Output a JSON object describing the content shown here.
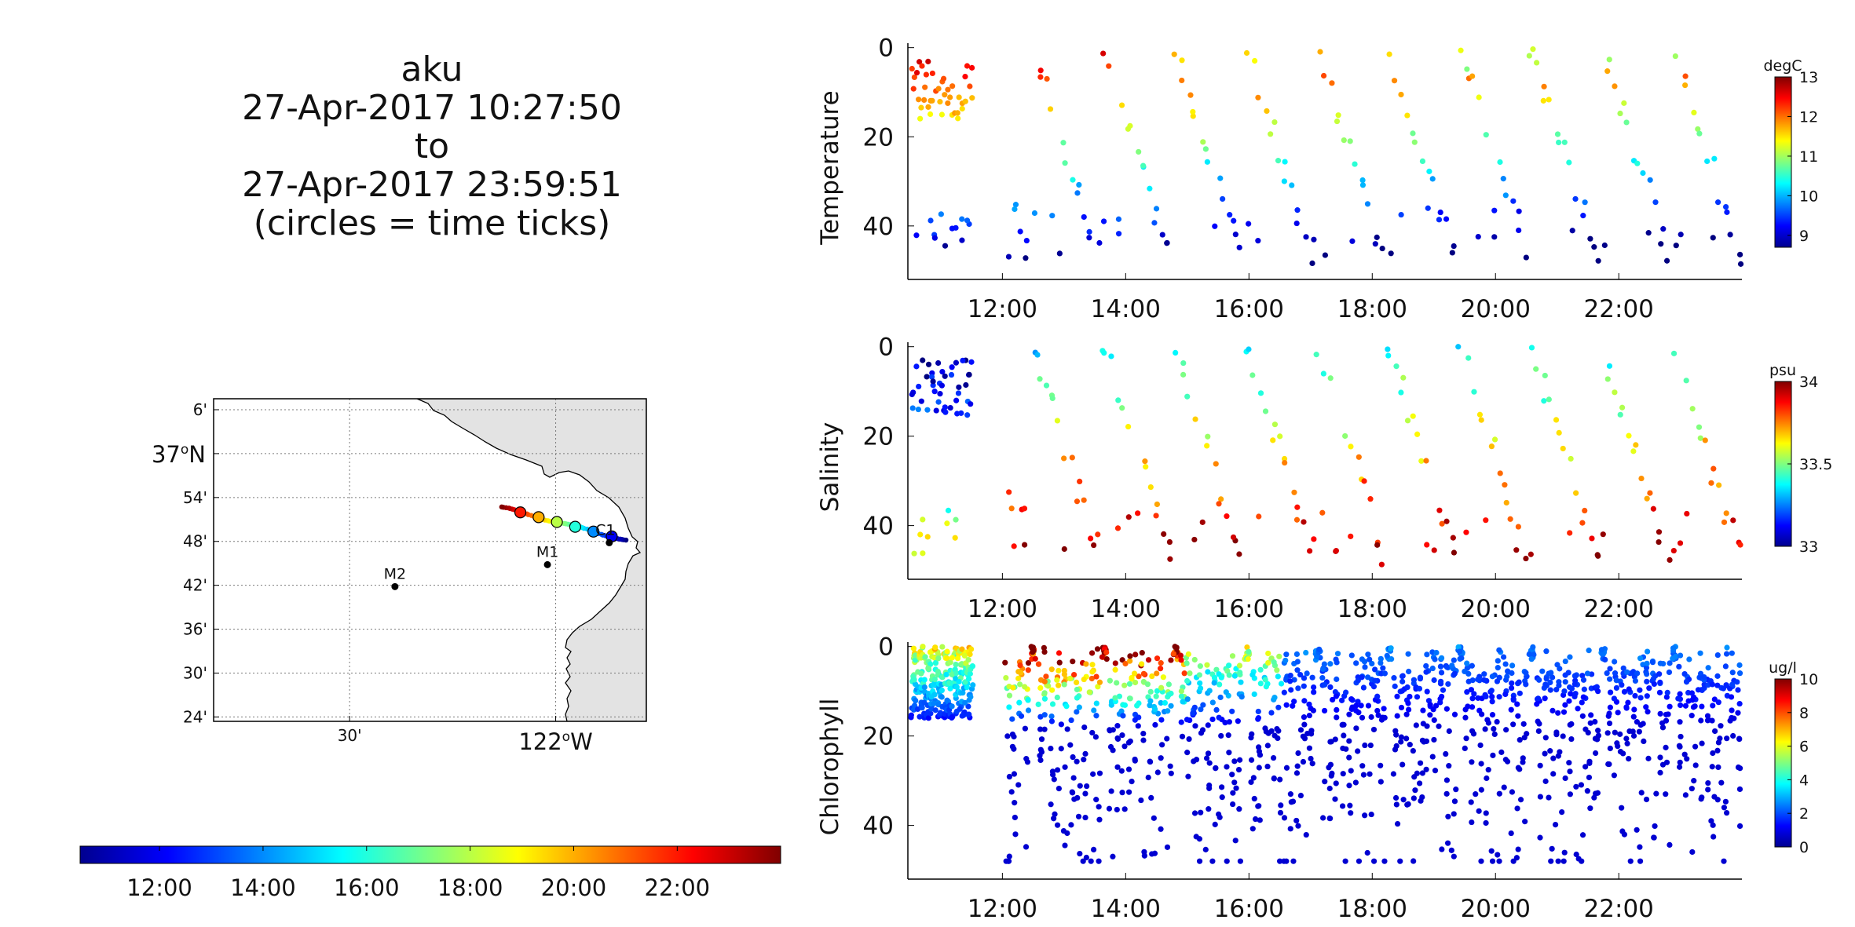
{
  "header": {
    "vehicle": "aku",
    "start_time": "27-Apr-2017 10:27:50",
    "connector": "to",
    "end_time": "27-Apr-2017 23:59:51",
    "note": "(circles = time ticks)"
  },
  "colors": {
    "axes": "#000000",
    "land": "#e3e3e3",
    "grid": "#7a7a7a",
    "colormap": "jet"
  },
  "time_colorbar": {
    "range_hours": [
      10.4664,
      23.9975
    ],
    "ticks": [
      "12:00",
      "14:00",
      "16:00",
      "18:00",
      "20:00",
      "22:00"
    ],
    "tick_hours": [
      12,
      14,
      16,
      18,
      20,
      22
    ]
  },
  "chart_data": [
    {
      "type": "scatter",
      "panel": "temperature",
      "ylabel": "Temperature",
      "colorbar_label": "degC",
      "colorbar_range": [
        8.7,
        13
      ],
      "colorbar_ticks": [
        9,
        10,
        11,
        12,
        13
      ],
      "x_range_hours": [
        10.4664,
        23.9975
      ],
      "x_ticks": [
        "12:00",
        "14:00",
        "16:00",
        "18:00",
        "20:00",
        "22:00"
      ],
      "x_tick_hours": [
        12,
        14,
        16,
        18,
        20,
        22
      ],
      "y_range": [
        52,
        -1
      ],
      "y_ticks": [
        0,
        20,
        40
      ],
      "y_reversed": true,
      "grid": false
    },
    {
      "type": "scatter",
      "panel": "salinity",
      "ylabel": "Salinity",
      "colorbar_label": "psu",
      "colorbar_range": [
        33,
        34
      ],
      "colorbar_ticks": [
        33,
        33.5,
        34
      ],
      "x_range_hours": [
        10.4664,
        23.9975
      ],
      "x_ticks": [
        "12:00",
        "14:00",
        "16:00",
        "18:00",
        "20:00",
        "22:00"
      ],
      "x_tick_hours": [
        12,
        14,
        16,
        18,
        20,
        22
      ],
      "y_range": [
        52,
        -1
      ],
      "y_ticks": [
        0,
        20,
        40
      ],
      "y_reversed": true,
      "grid": false
    },
    {
      "type": "scatter",
      "panel": "chlorophyll",
      "ylabel": "Chlorophyll",
      "colorbar_label": "ug/l",
      "colorbar_range": [
        0,
        10
      ],
      "colorbar_ticks": [
        0,
        2,
        4,
        6,
        8,
        10
      ],
      "x_range_hours": [
        10.4664,
        23.9975
      ],
      "x_ticks": [
        "12:00",
        "14:00",
        "16:00",
        "18:00",
        "20:00",
        "22:00"
      ],
      "x_tick_hours": [
        12,
        14,
        16,
        18,
        20,
        22
      ],
      "y_range": [
        52,
        -1
      ],
      "y_reversed": true,
      "y_ticks": [
        0,
        20,
        40
      ],
      "grid": false
    }
  ],
  "map": {
    "lon_range": [
      -122.83,
      -121.78
    ],
    "lat_range": [
      36.39,
      37.125
    ],
    "lat_tick_labels": [
      "6'",
      "54'",
      "48'",
      "42'",
      "36'",
      "30'",
      "24'"
    ],
    "lat_tick_values": [
      37.1,
      36.9,
      36.8,
      36.7,
      36.6,
      36.5,
      36.4
    ],
    "lat_major_label": "37",
    "lat_major_suffix": "N",
    "lat_major_value": 37.0,
    "lat_major_deg": "o",
    "lon_tick_labels": [
      "30'"
    ],
    "lon_tick_values": [
      -122.5
    ],
    "lon_major_label": "122",
    "lon_major_suffix": "W",
    "lon_major_deg": "o",
    "lon_major_value": -122.0,
    "grid": true,
    "moorings": [
      {
        "name": "M2",
        "lon": -122.39,
        "lat": 36.697
      },
      {
        "name": "M1",
        "lon": -122.02,
        "lat": 36.747
      },
      {
        "name": "C1",
        "lon": -121.87,
        "lat": 36.797
      }
    ],
    "track": {
      "start": {
        "lon": -121.83,
        "lat": 36.803
      },
      "end": {
        "lon": -122.13,
        "lat": 36.877
      }
    }
  }
}
